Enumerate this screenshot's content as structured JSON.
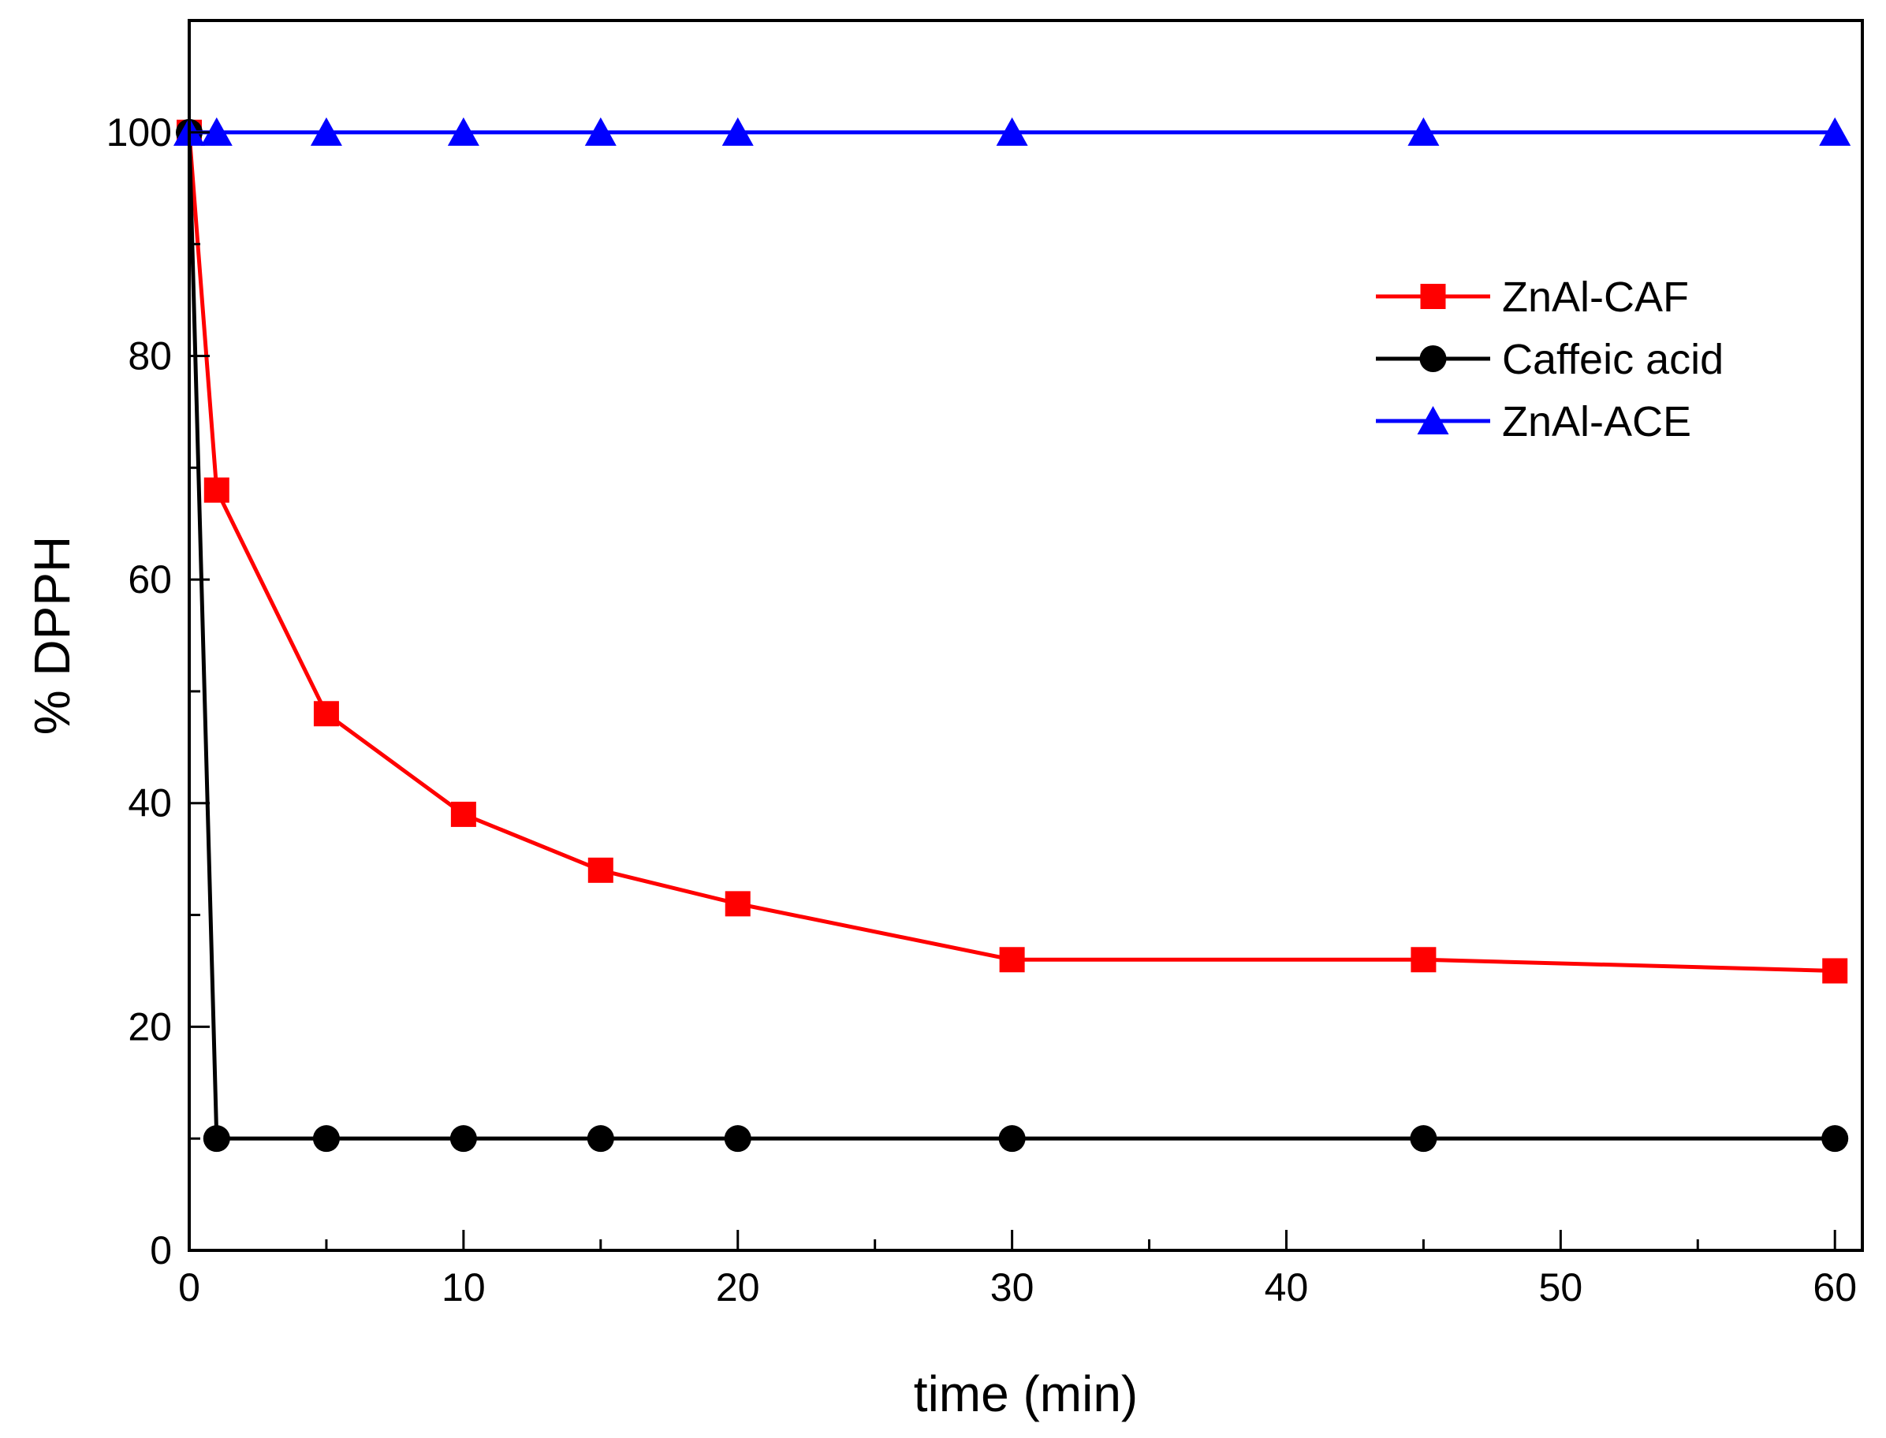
{
  "chart_data": {
    "type": "line",
    "title": "",
    "xlabel": "time (min)",
    "ylabel": "% DPPH",
    "xlim": [
      0,
      61
    ],
    "ylim": [
      0,
      110
    ],
    "xticks": [
      0,
      10,
      20,
      30,
      40,
      50,
      60
    ],
    "yticks": [
      0,
      20,
      40,
      60,
      80,
      100
    ],
    "grid": false,
    "legend_position": "top-right",
    "series": [
      {
        "name": "ZnAl-CAF",
        "color": "#ff0000",
        "marker": "square",
        "x": [
          0,
          1,
          5,
          10,
          15,
          20,
          30,
          45,
          60
        ],
        "y": [
          100,
          68,
          48,
          39,
          34,
          31,
          26,
          26,
          25
        ]
      },
      {
        "name": "Caffeic acid",
        "color": "#000000",
        "marker": "circle",
        "x": [
          0,
          1,
          5,
          10,
          15,
          20,
          30,
          45,
          60
        ],
        "y": [
          100,
          10,
          10,
          10,
          10,
          10,
          10,
          10,
          10
        ]
      },
      {
        "name": "ZnAl-ACE",
        "color": "#0000ff",
        "marker": "triangle",
        "x": [
          0,
          1,
          5,
          10,
          15,
          20,
          30,
          45,
          60
        ],
        "y": [
          100,
          100,
          100,
          100,
          100,
          100,
          100,
          100,
          100
        ]
      }
    ]
  }
}
